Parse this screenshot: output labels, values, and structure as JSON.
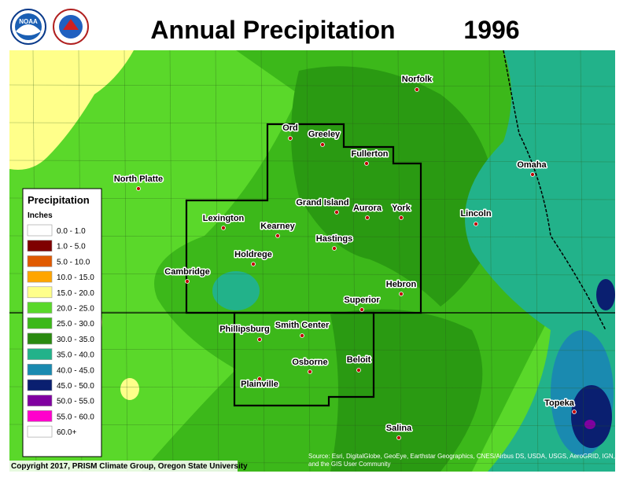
{
  "header": {
    "title": "Annual Precipitation",
    "year": "1996"
  },
  "logos": {
    "noaa": "NOAA"
  },
  "legend": {
    "title": "Precipitation",
    "units": "Inches",
    "items": [
      {
        "label": "0.0 - 1.0",
        "color": "#ffffff"
      },
      {
        "label": "1.0 - 5.0",
        "color": "#7f0000"
      },
      {
        "label": "5.0 - 10.0",
        "color": "#e05a00"
      },
      {
        "label": "10.0 - 15.0",
        "color": "#ffa500"
      },
      {
        "label": "15.0 - 20.0",
        "color": "#ffff8a"
      },
      {
        "label": "20.0 - 25.0",
        "color": "#5ad82a"
      },
      {
        "label": "25.0 - 30.0",
        "color": "#3cb81a"
      },
      {
        "label": "30.0 - 35.0",
        "color": "#2a8a10"
      },
      {
        "label": "35.0 - 40.0",
        "color": "#22b28a"
      },
      {
        "label": "40.0 - 45.0",
        "color": "#1a8ab0"
      },
      {
        "label": "45.0 - 50.0",
        "color": "#0a1f70"
      },
      {
        "label": "50.0 - 55.0",
        "color": "#8000a0"
      },
      {
        "label": "55.0 - 60.0",
        "color": "#ff00cc"
      },
      {
        "label": "60.0+",
        "color": "#ffffff"
      }
    ]
  },
  "cities": [
    "Norfolk",
    "Ord",
    "Greeley",
    "Fullerton",
    "Omaha",
    "North Platte",
    "Grand Island",
    "Aurora",
    "York",
    "Lincoln",
    "Lexington",
    "Kearney",
    "Hastings",
    "Holdrege",
    "Cambridge",
    "Hebron",
    "Superior",
    "Phillipsburg",
    "Smith Center",
    "Beloit",
    "Osborne",
    "Plainville",
    "Topeka",
    "Salina"
  ],
  "footer": {
    "copyright": "Copyright 2017, PRISM Climate Group, Oregon State University",
    "source": "Source: Esri, DigitalGlobe, GeoEye, Earthstar Geographics, CNES/Airbus DS, USDA, USGS, AeroGRID, IGN, and the GIS User Community"
  }
}
